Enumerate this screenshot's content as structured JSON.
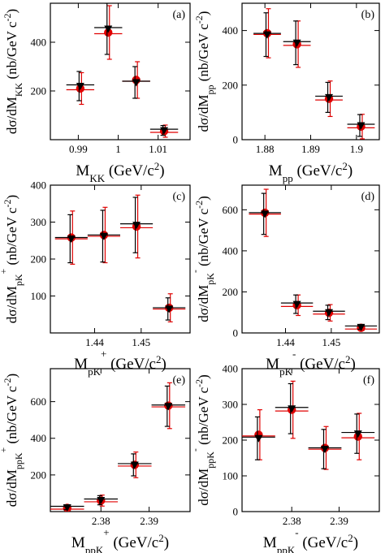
{
  "colors": {
    "series_red": "#e00000",
    "series_black": "#000000"
  },
  "chart_data": [
    {
      "type": "scatter",
      "panel_label": "(a)",
      "xlabel": {
        "main": "M",
        "sub": "KK",
        "rest": " (GeV/c",
        "sup": "2",
        "end": ")"
      },
      "ylabel": {
        "main": "dσ/dM",
        "sub": "KK",
        "rest": " (nb/GeV c",
        "sup": "-2",
        "end": ")"
      },
      "xlim": [
        0.983,
        1.018
      ],
      "ylim": [
        0,
        560
      ],
      "xticks": [
        0.99,
        1.0,
        1.01
      ],
      "xtick_labels": [
        "0.99",
        "1",
        "1.01"
      ],
      "yticks": [
        200,
        400
      ],
      "ytick_labels": [
        "200",
        "400"
      ],
      "series": [
        {
          "marker": "circle",
          "points": [
            {
              "x": 0.9905,
              "y": 210,
              "xerr": 3.5,
              "yerr": 65
            },
            {
              "x": 0.9975,
              "y": 440,
              "xerr": 3.5,
              "yerr": 110
            },
            {
              "x": 1.0045,
              "y": 245,
              "xerr": 3.5,
              "yerr": 75
            },
            {
              "x": 1.0115,
              "y": 35,
              "xerr": 3.5,
              "yerr": 25
            }
          ]
        },
        {
          "marker": "triangle-down",
          "points": [
            {
              "x": 0.9905,
              "y": 220,
              "xerr": 3.5,
              "yerr": 60
            },
            {
              "x": 0.9975,
              "y": 455,
              "xerr": 3.5,
              "yerr": 105
            },
            {
              "x": 1.0045,
              "y": 235,
              "xerr": 3.5,
              "yerr": 65
            },
            {
              "x": 1.0115,
              "y": 38,
              "xerr": 3.5,
              "yerr": 20
            }
          ]
        }
      ]
    },
    {
      "type": "scatter",
      "panel_label": "(b)",
      "xlabel": {
        "main": "M",
        "sub": "pp",
        "rest": " (GeV/c",
        "sup": "2",
        "end": ")"
      },
      "ylabel": {
        "main": "dσ/dM",
        "sub": "pp",
        "rest": " (nb/GeV c",
        "sup": "-2",
        "end": ")"
      },
      "xlim": [
        1.875,
        1.905
      ],
      "ylim": [
        0,
        500
      ],
      "xticks": [
        1.88,
        1.89,
        1.9
      ],
      "xtick_labels": [
        "1.88",
        "1.89",
        "1.9"
      ],
      "yticks": [
        0,
        200,
        400
      ],
      "ytick_labels": [
        "0",
        "200",
        "400"
      ],
      "series": [
        {
          "marker": "circle",
          "points": [
            {
              "x": 1.8805,
              "y": 390,
              "xerr": 3,
              "yerr": 90
            },
            {
              "x": 1.887,
              "y": 350,
              "xerr": 3,
              "yerr": 85
            },
            {
              "x": 1.894,
              "y": 150,
              "xerr": 3,
              "yerr": 65
            },
            {
              "x": 1.901,
              "y": 48,
              "xerr": 3,
              "yerr": 45
            }
          ]
        },
        {
          "marker": "triangle-down",
          "points": [
            {
              "x": 1.8805,
              "y": 385,
              "xerr": 3,
              "yerr": 80
            },
            {
              "x": 1.887,
              "y": 355,
              "xerr": 3,
              "yerr": 80
            },
            {
              "x": 1.894,
              "y": 155,
              "xerr": 3,
              "yerr": 55
            },
            {
              "x": 1.901,
              "y": 52,
              "xerr": 3,
              "yerr": 40
            }
          ]
        }
      ]
    },
    {
      "type": "scatter",
      "panel_label": "(c)",
      "xlabel": {
        "main": "M",
        "sub": "pK",
        "subsup": "+",
        "rest": " (GeV/c",
        "sup": "2",
        "end": ")"
      },
      "ylabel": {
        "main": "dσ/dM",
        "sub": "pK",
        "subsup": "+",
        "rest": " (nb/GeV c",
        "sup": "-2",
        "end": ")"
      },
      "xlim": [
        1.4305,
        1.4605
      ],
      "ylim": [
        0,
        400
      ],
      "xticks": [
        1.44,
        1.45
      ],
      "xtick_labels": [
        "1.44",
        "1.45"
      ],
      "yticks": [
        100,
        200,
        300,
        400
      ],
      "ytick_labels": [
        "100",
        "200",
        "300",
        "400"
      ],
      "series": [
        {
          "marker": "circle",
          "points": [
            {
              "x": 1.435,
              "y": 258,
              "xerr": 3.5,
              "yerr": 72
            },
            {
              "x": 1.442,
              "y": 265,
              "xerr": 3.5,
              "yerr": 75
            },
            {
              "x": 1.449,
              "y": 288,
              "xerr": 3.5,
              "yerr": 85
            },
            {
              "x": 1.456,
              "y": 68,
              "xerr": 3.5,
              "yerr": 38
            }
          ]
        },
        {
          "marker": "triangle-down",
          "points": [
            {
              "x": 1.435,
              "y": 255,
              "xerr": 3.5,
              "yerr": 65
            },
            {
              "x": 1.442,
              "y": 262,
              "xerr": 3.5,
              "yerr": 70
            },
            {
              "x": 1.449,
              "y": 292,
              "xerr": 3.5,
              "yerr": 75
            },
            {
              "x": 1.456,
              "y": 65,
              "xerr": 3.5,
              "yerr": 30
            }
          ]
        }
      ]
    },
    {
      "type": "scatter",
      "panel_label": "(d)",
      "xlabel": {
        "main": "M",
        "sub": "pK",
        "subsup": "-",
        "rest": " (GeV/c",
        "sup": "2",
        "end": ")"
      },
      "ylabel": {
        "main": "dσ/dM",
        "sub": "pK",
        "subsup": "-",
        "rest": " (nb/GeV c",
        "sup": "-2",
        "end": ")"
      },
      "xlim": [
        1.4305,
        1.4605
      ],
      "ylim": [
        0,
        720
      ],
      "xticks": [
        1.44,
        1.45
      ],
      "xtick_labels": [
        "1.44",
        "1.45"
      ],
      "yticks": [
        0,
        200,
        400,
        600
      ],
      "ytick_labels": [
        "0",
        "200",
        "400",
        "600"
      ],
      "series": [
        {
          "marker": "circle",
          "points": [
            {
              "x": 1.4355,
              "y": 585,
              "xerr": 3.5,
              "yerr": 115
            },
            {
              "x": 1.4425,
              "y": 135,
              "xerr": 3.5,
              "yerr": 50
            },
            {
              "x": 1.4495,
              "y": 98,
              "xerr": 3.5,
              "yerr": 40
            },
            {
              "x": 1.4565,
              "y": 25,
              "xerr": 3.5,
              "yerr": 12
            }
          ]
        },
        {
          "marker": "triangle-down",
          "points": [
            {
              "x": 1.4355,
              "y": 580,
              "xerr": 3.5,
              "yerr": 100
            },
            {
              "x": 1.4425,
              "y": 140,
              "xerr": 3.5,
              "yerr": 45
            },
            {
              "x": 1.4495,
              "y": 100,
              "xerr": 3.5,
              "yerr": 35
            },
            {
              "x": 1.4565,
              "y": 28,
              "xerr": 3.5,
              "yerr": 10
            }
          ]
        }
      ]
    },
    {
      "type": "scatter",
      "panel_label": "(e)",
      "xlabel": {
        "main": "M",
        "sub": "ppK",
        "subsup": "+",
        "rest": " (GeV/c",
        "sup": "2",
        "end": ")"
      },
      "ylabel": {
        "main": "dσ/dM",
        "sub": "ppK",
        "subsup": "+",
        "rest": " (nb/GeV c",
        "sup": "-2",
        "end": ")"
      },
      "xlim": [
        2.3695,
        2.3985
      ],
      "ylim": [
        0,
        780
      ],
      "xticks": [
        2.38,
        2.39
      ],
      "xtick_labels": [
        "2.38",
        "2.39"
      ],
      "yticks": [
        200,
        400,
        600
      ],
      "ytick_labels": [
        "200",
        "400",
        "600"
      ],
      "series": [
        {
          "marker": "circle",
          "points": [
            {
              "x": 2.373,
              "y": 20,
              "xerr": 3.5,
              "yerr": 15
            },
            {
              "x": 2.38,
              "y": 60,
              "xerr": 3.5,
              "yerr": 30
            },
            {
              "x": 2.387,
              "y": 255,
              "xerr": 3.5,
              "yerr": 70
            },
            {
              "x": 2.394,
              "y": 578,
              "xerr": 3.5,
              "yerr": 125
            }
          ]
        },
        {
          "marker": "triangle-down",
          "points": [
            {
              "x": 2.373,
              "y": 22,
              "xerr": 3.5,
              "yerr": 12
            },
            {
              "x": 2.38,
              "y": 62,
              "xerr": 3.5,
              "yerr": 25
            },
            {
              "x": 2.387,
              "y": 255,
              "xerr": 3.5,
              "yerr": 60
            },
            {
              "x": 2.394,
              "y": 575,
              "xerr": 3.5,
              "yerr": 110
            }
          ]
        }
      ]
    },
    {
      "type": "scatter",
      "panel_label": "(f)",
      "xlabel": {
        "main": "M",
        "sub": "ppK",
        "subsup": "-",
        "rest": " (GeV/c",
        "sup": "2",
        "end": ")"
      },
      "ylabel": {
        "main": "dσ/dM",
        "sub": "ppK",
        "subsup": "-",
        "rest": " (nb/GeV c",
        "sup": "-2",
        "end": ")"
      },
      "xlim": [
        2.3695,
        2.3985
      ],
      "ylim": [
        0,
        400
      ],
      "xticks": [
        2.38,
        2.39
      ],
      "xtick_labels": [
        "2.38",
        "2.39"
      ],
      "yticks": [
        0,
        100,
        200,
        300,
        400
      ],
      "ytick_labels": [
        "0",
        "100",
        "200",
        "300",
        "400"
      ],
      "series": [
        {
          "marker": "circle",
          "points": [
            {
              "x": 2.373,
              "y": 215,
              "xerr": 3.5,
              "yerr": 70
            },
            {
              "x": 2.38,
              "y": 285,
              "xerr": 3.5,
              "yerr": 80
            },
            {
              "x": 2.387,
              "y": 178,
              "xerr": 3.5,
              "yerr": 60
            },
            {
              "x": 2.394,
              "y": 210,
              "xerr": 3.5,
              "yerr": 65
            }
          ]
        },
        {
          "marker": "triangle-down",
          "points": [
            {
              "x": 2.373,
              "y": 205,
              "xerr": 3.5,
              "yerr": 60
            },
            {
              "x": 2.38,
              "y": 288,
              "xerr": 3.5,
              "yerr": 70
            },
            {
              "x": 2.387,
              "y": 175,
              "xerr": 3.5,
              "yerr": 55
            },
            {
              "x": 2.394,
              "y": 218,
              "xerr": 3.5,
              "yerr": 55
            }
          ]
        }
      ]
    }
  ]
}
